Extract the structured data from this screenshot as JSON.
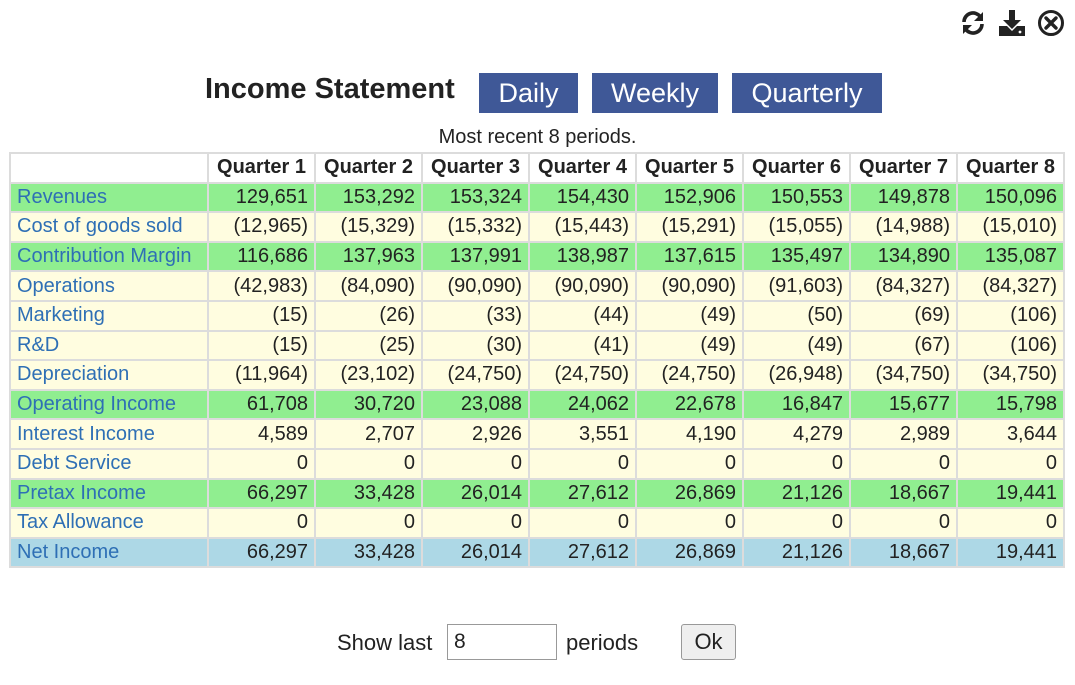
{
  "toolbar": {
    "refresh_icon": "refresh-icon",
    "download_icon": "download-icon",
    "close_icon": "close-circle-icon"
  },
  "header": {
    "title": "Income Statement",
    "tabs": [
      "Daily",
      "Weekly",
      "Quarterly"
    ]
  },
  "subtitle": "Most recent 8 periods.",
  "table": {
    "columns": [
      "Quarter 1",
      "Quarter 2",
      "Quarter 3",
      "Quarter 4",
      "Quarter 5",
      "Quarter 6",
      "Quarter 7",
      "Quarter 8"
    ],
    "rows": [
      {
        "label": "Revenues",
        "style": "green",
        "values": [
          "129,651",
          "153,292",
          "153,324",
          "154,430",
          "152,906",
          "150,553",
          "149,878",
          "150,096"
        ]
      },
      {
        "label": "Cost of goods sold",
        "style": "yellow",
        "values": [
          "(12,965)",
          "(15,329)",
          "(15,332)",
          "(15,443)",
          "(15,291)",
          "(15,055)",
          "(14,988)",
          "(15,010)"
        ]
      },
      {
        "label": "Contribution Margin",
        "style": "green",
        "values": [
          "116,686",
          "137,963",
          "137,991",
          "138,987",
          "137,615",
          "135,497",
          "134,890",
          "135,087"
        ]
      },
      {
        "label": "Operations",
        "style": "yellow",
        "values": [
          "(42,983)",
          "(84,090)",
          "(90,090)",
          "(90,090)",
          "(90,090)",
          "(91,603)",
          "(84,327)",
          "(84,327)"
        ]
      },
      {
        "label": "Marketing",
        "style": "yellow",
        "values": [
          "(15)",
          "(26)",
          "(33)",
          "(44)",
          "(49)",
          "(50)",
          "(69)",
          "(106)"
        ]
      },
      {
        "label": "R&D",
        "style": "yellow",
        "values": [
          "(15)",
          "(25)",
          "(30)",
          "(41)",
          "(49)",
          "(49)",
          "(67)",
          "(106)"
        ]
      },
      {
        "label": "Depreciation",
        "style": "yellow",
        "values": [
          "(11,964)",
          "(23,102)",
          "(24,750)",
          "(24,750)",
          "(24,750)",
          "(26,948)",
          "(34,750)",
          "(34,750)"
        ]
      },
      {
        "label": "Operating Income",
        "style": "green",
        "values": [
          "61,708",
          "30,720",
          "23,088",
          "24,062",
          "22,678",
          "16,847",
          "15,677",
          "15,798"
        ]
      },
      {
        "label": "Interest Income",
        "style": "yellow",
        "values": [
          "4,589",
          "2,707",
          "2,926",
          "3,551",
          "4,190",
          "4,279",
          "2,989",
          "3,644"
        ]
      },
      {
        "label": "Debt Service",
        "style": "yellow",
        "values": [
          "0",
          "0",
          "0",
          "0",
          "0",
          "0",
          "0",
          "0"
        ]
      },
      {
        "label": "Pretax Income",
        "style": "green",
        "values": [
          "66,297",
          "33,428",
          "26,014",
          "27,612",
          "26,869",
          "21,126",
          "18,667",
          "19,441"
        ]
      },
      {
        "label": "Tax Allowance",
        "style": "yellow",
        "values": [
          "0",
          "0",
          "0",
          "0",
          "0",
          "0",
          "0",
          "0"
        ]
      },
      {
        "label": "Net Income",
        "style": "blue",
        "values": [
          "66,297",
          "33,428",
          "26,014",
          "27,612",
          "26,869",
          "21,126",
          "18,667",
          "19,441"
        ]
      }
    ]
  },
  "footer": {
    "show_last_label": "Show last",
    "periods_value": "8",
    "periods_label": "periods",
    "ok_label": "Ok"
  },
  "colors": {
    "tab_button": "#3f5897",
    "row_green": "#90ee90",
    "row_yellow": "#fffde0",
    "row_blue": "#add8e6",
    "label_link": "#2e6fb5"
  }
}
